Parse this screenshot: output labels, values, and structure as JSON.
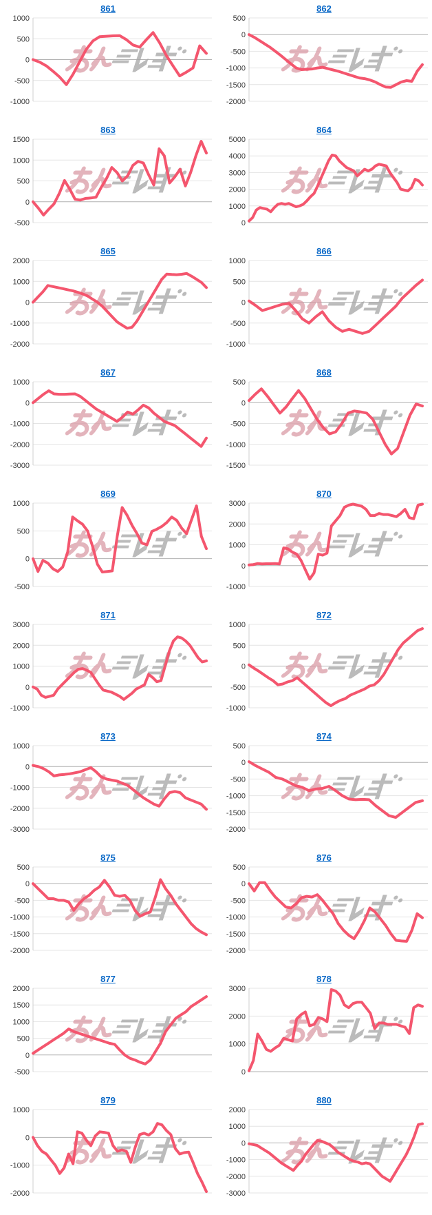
{
  "page": {
    "background": "#ffffff"
  },
  "watermark": {
    "text": "みんレポ",
    "pink_color": "#d998a3",
    "gray_color": "#a8a8a8"
  },
  "chart_style": {
    "line_color": "#f4566e",
    "grid_color": "#e4e4e4",
    "zero_line_color": "#b0b0b0",
    "axis_color": "#cfcfcf",
    "tick_color": "#3c3c3c",
    "title_color": "#0b69c7"
  },
  "chart_data": [
    {
      "id": "861",
      "type": "line",
      "ylim": [
        -1000,
        1000
      ],
      "yticks": [
        1000,
        500,
        0,
        -500,
        -1000
      ],
      "values": [
        0,
        -60,
        -150,
        -280,
        -420,
        -600,
        -350,
        -50,
        250,
        450,
        550,
        560,
        570,
        575,
        480,
        350,
        300,
        480,
        650,
        400,
        100,
        -150,
        -390,
        -300,
        -200,
        330,
        150
      ]
    },
    {
      "id": "862",
      "type": "line",
      "ylim": [
        -2000,
        500
      ],
      "yticks": [
        500,
        0,
        -500,
        -1000,
        -1500,
        -2000
      ],
      "values": [
        0,
        -80,
        -180,
        -280,
        -380,
        -500,
        -620,
        -750,
        -880,
        -1000,
        -1050,
        -1040,
        -1030,
        -1000,
        -980,
        -1020,
        -1060,
        -1100,
        -1150,
        -1200,
        -1250,
        -1300,
        -1320,
        -1360,
        -1420,
        -1500,
        -1570,
        -1580,
        -1500,
        -1420,
        -1380,
        -1400,
        -1100,
        -900
      ]
    },
    {
      "id": "863",
      "type": "line",
      "ylim": [
        -500,
        1500
      ],
      "yticks": [
        1500,
        1000,
        500,
        0,
        -500
      ],
      "values": [
        0,
        -150,
        -320,
        -180,
        -50,
        200,
        510,
        300,
        60,
        40,
        80,
        90,
        110,
        350,
        560,
        820,
        700,
        500,
        620,
        870,
        970,
        930,
        650,
        400,
        1270,
        1100,
        450,
        600,
        780,
        380,
        700,
        1100,
        1450,
        1170
      ]
    },
    {
      "id": "864",
      "type": "line",
      "ylim": [
        0,
        5000
      ],
      "yticks": [
        5000,
        4000,
        3000,
        2000,
        1000,
        0
      ],
      "values": [
        100,
        300,
        750,
        900,
        850,
        800,
        650,
        900,
        1100,
        1150,
        1100,
        1150,
        1050,
        950,
        1000,
        1100,
        1300,
        1550,
        1750,
        2200,
        2700,
        3200,
        3700,
        4050,
        4000,
        3700,
        3500,
        3300,
        3200,
        3100,
        2800,
        3000,
        3200,
        3100,
        3200,
        3400,
        3500,
        3450,
        3400,
        3000,
        2700,
        2400,
        2000,
        1950,
        1900,
        2100,
        2600,
        2500,
        2250
      ]
    },
    {
      "id": "865",
      "type": "line",
      "ylim": [
        -2000,
        2000
      ],
      "yticks": [
        2000,
        1000,
        0,
        -1000,
        -2000
      ],
      "values": [
        0,
        250,
        500,
        800,
        750,
        700,
        650,
        600,
        550,
        480,
        400,
        300,
        150,
        0,
        -200,
        -450,
        -700,
        -950,
        -1100,
        -1250,
        -1200,
        -900,
        -500,
        -100,
        300,
        700,
        1100,
        1350,
        1330,
        1320,
        1340,
        1380,
        1250,
        1100,
        950,
        700
      ]
    },
    {
      "id": "866",
      "type": "line",
      "ylim": [
        -1000,
        1000
      ],
      "yticks": [
        1000,
        500,
        0,
        -500,
        -1000
      ],
      "values": [
        30,
        -80,
        -200,
        -150,
        -100,
        -50,
        -30,
        -200,
        -400,
        -500,
        -350,
        -230,
        -450,
        -600,
        -700,
        -650,
        -700,
        -750,
        -700,
        -550,
        -400,
        -250,
        -100,
        100,
        250,
        400,
        530
      ]
    },
    {
      "id": "867",
      "type": "line",
      "ylim": [
        -3000,
        1000
      ],
      "yticks": [
        1000,
        0,
        -1000,
        -2000,
        -3000
      ],
      "values": [
        0,
        200,
        400,
        570,
        420,
        400,
        400,
        410,
        420,
        300,
        100,
        -100,
        -300,
        -450,
        -600,
        -750,
        -900,
        -700,
        -450,
        -550,
        -350,
        -120,
        -250,
        -500,
        -700,
        -900,
        -1000,
        -1100,
        -1300,
        -1500,
        -1700,
        -1900,
        -2100,
        -1700
      ]
    },
    {
      "id": "868",
      "type": "line",
      "ylim": [
        -1500,
        500
      ],
      "yticks": [
        500,
        0,
        -500,
        -1000,
        -1500
      ],
      "values": [
        50,
        200,
        330,
        150,
        -50,
        -250,
        -100,
        100,
        290,
        100,
        -150,
        -400,
        -600,
        -750,
        -700,
        -500,
        -250,
        -200,
        -220,
        -250,
        -400,
        -700,
        -1000,
        -1230,
        -1100,
        -700,
        -300,
        -30,
        -80
      ]
    },
    {
      "id": "869",
      "type": "line",
      "ylim": [
        -500,
        1000
      ],
      "yticks": [
        1000,
        500,
        0,
        -500
      ],
      "values": [
        0,
        -230,
        -30,
        -80,
        -180,
        -230,
        -150,
        120,
        750,
        680,
        620,
        500,
        230,
        -100,
        -240,
        -230,
        -220,
        400,
        920,
        780,
        600,
        450,
        280,
        250,
        490,
        530,
        580,
        650,
        750,
        690,
        550,
        450,
        700,
        950,
        400,
        180
      ]
    },
    {
      "id": "870",
      "type": "line",
      "ylim": [
        -1000,
        3000
      ],
      "yticks": [
        3000,
        2000,
        1000,
        0,
        -1000
      ],
      "values": [
        30,
        50,
        100,
        80,
        90,
        90,
        100,
        80,
        850,
        800,
        650,
        550,
        250,
        -200,
        -650,
        -350,
        550,
        500,
        600,
        1900,
        2150,
        2400,
        2800,
        2900,
        2950,
        2900,
        2850,
        2700,
        2400,
        2400,
        2500,
        2450,
        2450,
        2400,
        2350,
        2500,
        2700,
        2300,
        2250,
        2900,
        2950
      ]
    },
    {
      "id": "871",
      "type": "line",
      "ylim": [
        -1000,
        3000
      ],
      "yticks": [
        3000,
        2000,
        1000,
        0,
        -1000
      ],
      "values": [
        0,
        -100,
        -400,
        -500,
        -450,
        -400,
        -100,
        100,
        300,
        500,
        700,
        850,
        880,
        800,
        700,
        400,
        100,
        -150,
        -200,
        -250,
        -350,
        -450,
        -600,
        -450,
        -300,
        -100,
        0,
        100,
        600,
        450,
        250,
        300,
        1000,
        1700,
        2200,
        2400,
        2350,
        2200,
        2000,
        1700,
        1400,
        1200,
        1250
      ]
    },
    {
      "id": "872",
      "type": "line",
      "ylim": [
        -1000,
        1000
      ],
      "yticks": [
        1000,
        500,
        0,
        -500,
        -1000
      ],
      "values": [
        30,
        -50,
        -120,
        -200,
        -280,
        -350,
        -450,
        -430,
        -380,
        -350,
        -280,
        -380,
        -480,
        -580,
        -680,
        -780,
        -880,
        -950,
        -880,
        -820,
        -780,
        -700,
        -650,
        -600,
        -550,
        -480,
        -450,
        -350,
        -200,
        0,
        200,
        400,
        550,
        650,
        750,
        850,
        900
      ]
    },
    {
      "id": "873",
      "type": "line",
      "ylim": [
        -3000,
        1000
      ],
      "yticks": [
        1000,
        0,
        -1000,
        -2000,
        -3000
      ],
      "values": [
        50,
        0,
        -100,
        -250,
        -450,
        -400,
        -380,
        -350,
        -300,
        -250,
        -150,
        -50,
        -250,
        -500,
        -600,
        -650,
        -700,
        -800,
        -900,
        -1100,
        -1300,
        -1500,
        -1650,
        -1800,
        -1900,
        -1550,
        -1250,
        -1200,
        -1250,
        -1500,
        -1600,
        -1700,
        -1800,
        -2050
      ]
    },
    {
      "id": "874",
      "type": "line",
      "ylim": [
        -2000,
        500
      ],
      "yticks": [
        500,
        0,
        -500,
        -1000,
        -1500,
        -2000
      ],
      "values": [
        20,
        -100,
        -200,
        -300,
        -450,
        -500,
        -600,
        -700,
        -750,
        -850,
        -800,
        -780,
        -720,
        -850,
        -1000,
        -1100,
        -1120,
        -1110,
        -1120,
        -1300,
        -1450,
        -1600,
        -1650,
        -1500,
        -1350,
        -1200,
        -1150
      ]
    },
    {
      "id": "875",
      "type": "line",
      "ylim": [
        -2000,
        500
      ],
      "yticks": [
        500,
        0,
        -500,
        -1000,
        -1500,
        -2000
      ],
      "values": [
        0,
        -150,
        -300,
        -450,
        -450,
        -500,
        -500,
        -550,
        -800,
        -600,
        -450,
        -350,
        -200,
        -100,
        100,
        -100,
        -350,
        -380,
        -350,
        -500,
        -800,
        -980,
        -900,
        -850,
        -400,
        120,
        -150,
        -350,
        -600,
        -800,
        -1000,
        -1200,
        -1350,
        -1450,
        -1530
      ]
    },
    {
      "id": "876",
      "type": "line",
      "ylim": [
        -2000,
        500
      ],
      "yticks": [
        500,
        0,
        -500,
        -1000,
        -1500,
        -2000
      ],
      "values": [
        0,
        -220,
        30,
        30,
        -200,
        -400,
        -550,
        -700,
        -730,
        -600,
        -420,
        -380,
        -400,
        -330,
        -500,
        -700,
        -900,
        -1200,
        -1400,
        -1550,
        -1650,
        -1400,
        -1100,
        -730,
        -850,
        -1050,
        -1250,
        -1500,
        -1700,
        -1720,
        -1730,
        -1400,
        -900,
        -1020
      ]
    },
    {
      "id": "877",
      "type": "line",
      "ylim": [
        -500,
        2000
      ],
      "yticks": [
        2000,
        1500,
        1000,
        500,
        0,
        -500
      ],
      "values": [
        50,
        150,
        250,
        350,
        450,
        550,
        650,
        780,
        700,
        650,
        600,
        550,
        500,
        450,
        400,
        350,
        320,
        150,
        0,
        -100,
        -150,
        -220,
        -270,
        -150,
        100,
        350,
        700,
        900,
        1100,
        1200,
        1300,
        1450,
        1550,
        1650,
        1750
      ]
    },
    {
      "id": "878",
      "type": "line",
      "ylim": [
        0,
        3000
      ],
      "yticks": [
        3000,
        2000,
        1000,
        0
      ],
      "values": [
        30,
        400,
        1350,
        1100,
        800,
        730,
        850,
        950,
        1200,
        1150,
        1100,
        1900,
        2050,
        2150,
        1650,
        1700,
        1950,
        1900,
        1800,
        2950,
        2900,
        2750,
        2400,
        2300,
        2450,
        2500,
        2500,
        2300,
        2100,
        1550,
        1750,
        1750,
        1700,
        1700,
        1700,
        1650,
        1600,
        1370,
        2300,
        2400,
        2350
      ]
    },
    {
      "id": "879",
      "type": "line",
      "ylim": [
        -2000,
        1000
      ],
      "yticks": [
        1000,
        0,
        -1000,
        -2000
      ],
      "values": [
        0,
        -300,
        -500,
        -600,
        -800,
        -1000,
        -1300,
        -1100,
        -600,
        -950,
        200,
        150,
        -100,
        -300,
        50,
        200,
        180,
        150,
        -300,
        -500,
        -450,
        -500,
        -900,
        -350,
        100,
        150,
        80,
        200,
        500,
        450,
        250,
        100,
        -400,
        -600,
        -550,
        -530,
        -900,
        -1300,
        -1600,
        -1950
      ]
    },
    {
      "id": "880",
      "type": "line",
      "ylim": [
        -3000,
        2000
      ],
      "yticks": [
        2000,
        1000,
        0,
        -1000,
        -2000,
        -3000
      ],
      "values": [
        -50,
        -100,
        -150,
        -300,
        -450,
        -600,
        -800,
        -1000,
        -1200,
        -1350,
        -1500,
        -1650,
        -1350,
        -1100,
        -700,
        -400,
        -100,
        150,
        100,
        0,
        -100,
        -300,
        -550,
        -700,
        -850,
        -1000,
        -1100,
        -1150,
        -1250,
        -1200,
        -1250,
        -1500,
        -1750,
        -2000,
        -2150,
        -2300,
        -1900,
        -1500,
        -1100,
        -700,
        -200,
        400,
        1100,
        1150
      ]
    }
  ]
}
